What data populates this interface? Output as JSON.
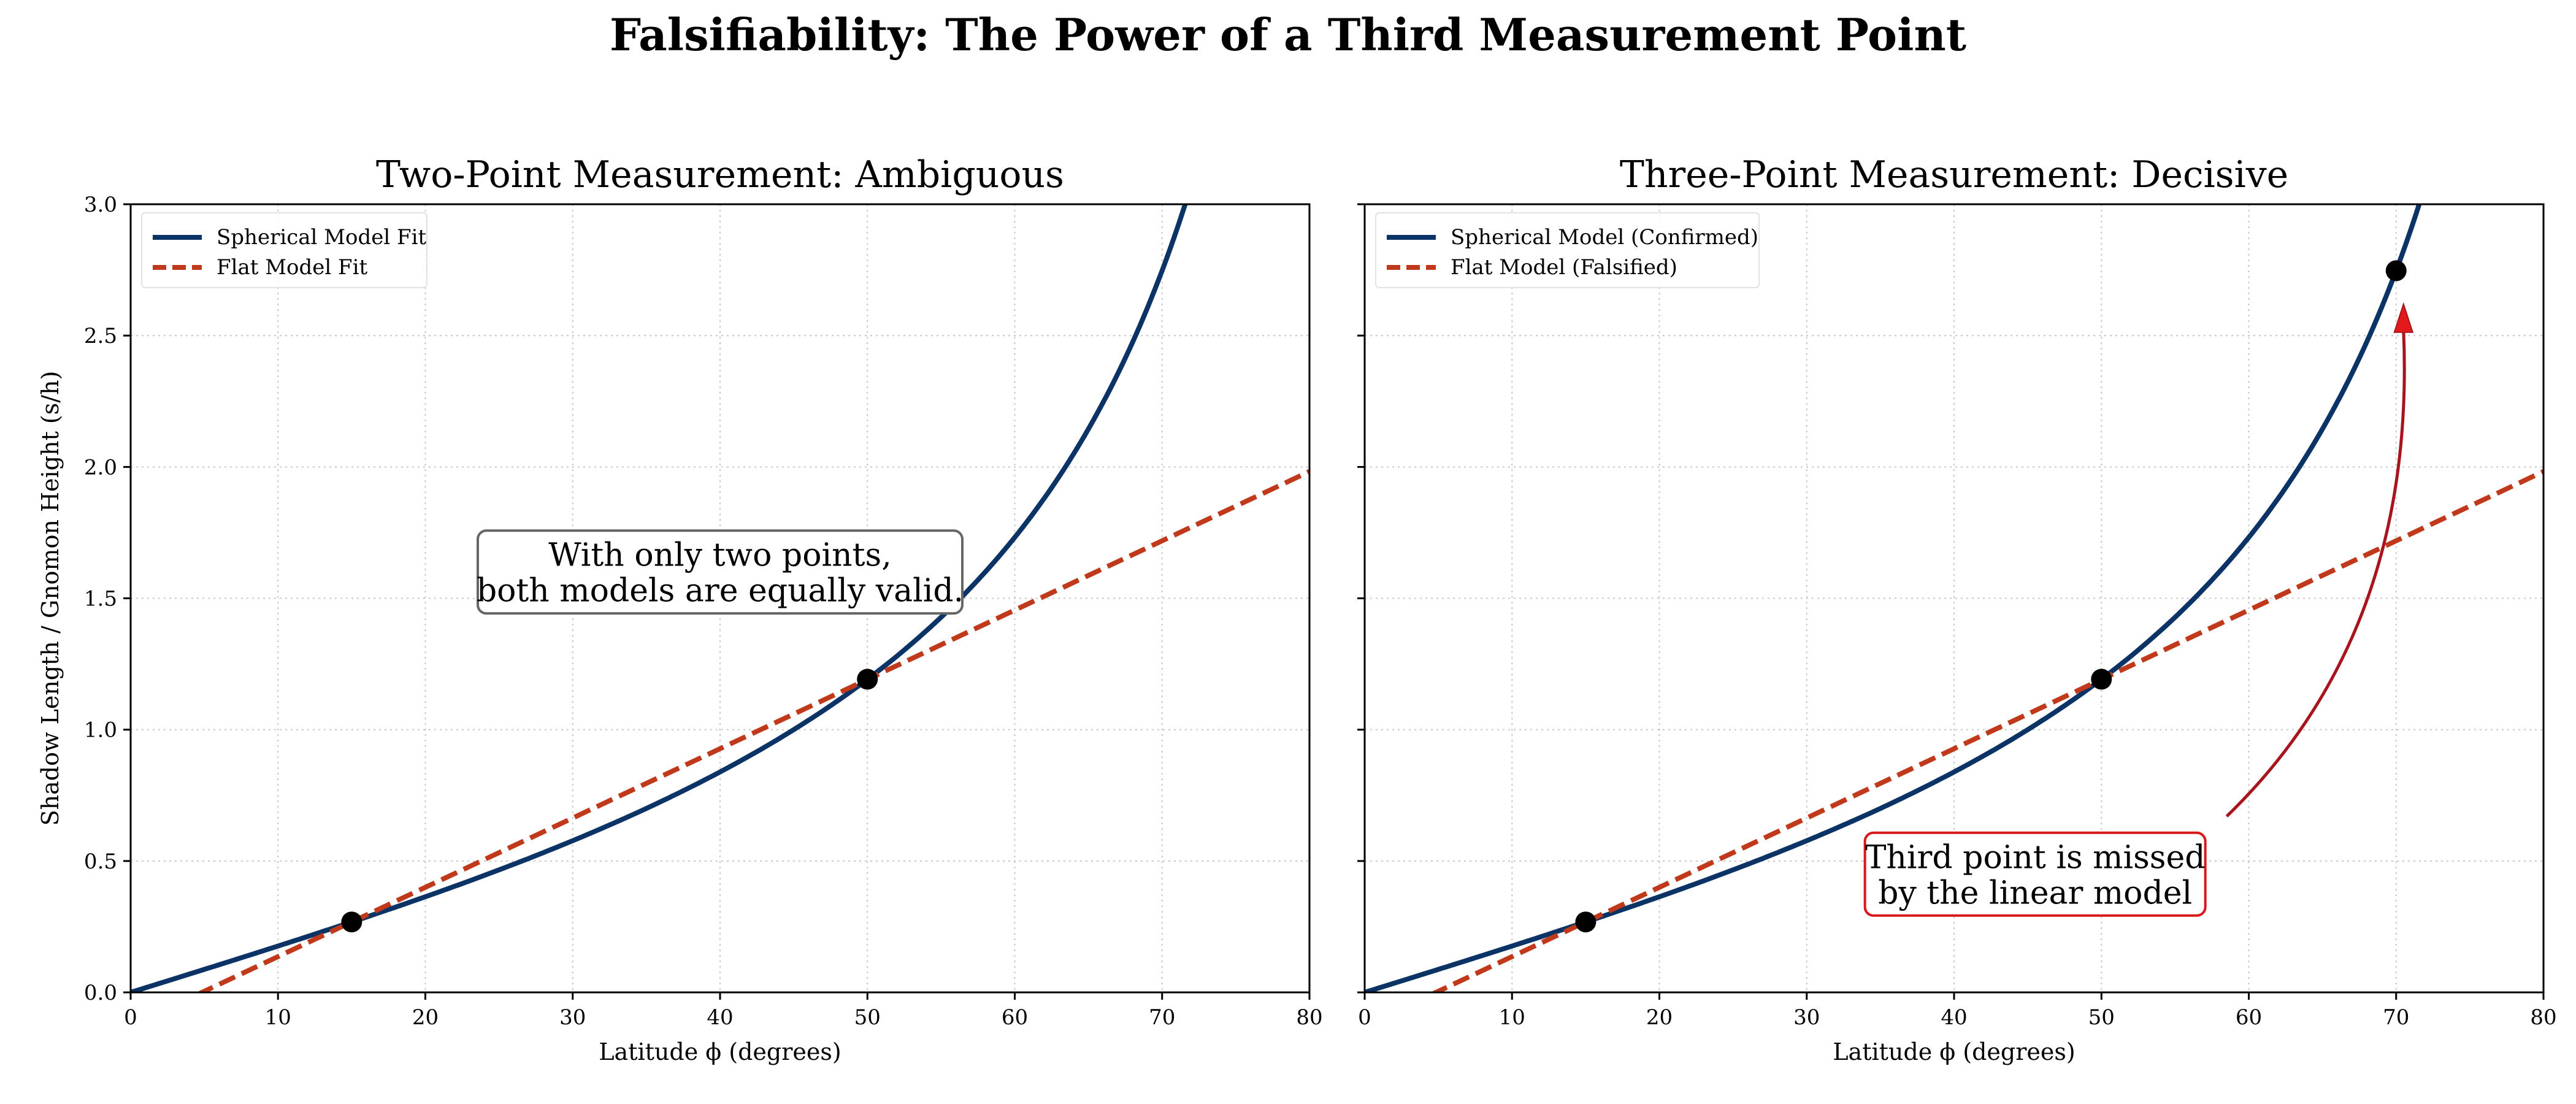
{
  "suptitle": "Falsifiability: The Power of a Third Measurement Point",
  "colors": {
    "spherical": "#0b3366",
    "flat": "#c0391b",
    "points": "#000000",
    "arrow": "#a8141c",
    "annot_box_left": "#666666",
    "annot_box_right": "#d7191c"
  },
  "chart_data": [
    {
      "type": "line",
      "title": "Two-Point Measurement: Ambiguous",
      "xlabel": "Latitude ϕ (degrees)",
      "ylabel": "Shadow Length / Gnomon Height (s/h)",
      "xlim": [
        0,
        80
      ],
      "ylim": [
        0,
        3.0
      ],
      "xticks": [
        "0",
        "10",
        "20",
        "30",
        "40",
        "50",
        "60",
        "70",
        "80"
      ],
      "yticks": [
        "0.0",
        "0.5",
        "1.0",
        "1.5",
        "2.0",
        "2.5",
        "3.0"
      ],
      "grid": true,
      "legend_position": "upper-left",
      "series": [
        {
          "name": "Spherical Model Fit",
          "model": "tan",
          "style": "solid"
        },
        {
          "name": "Flat Model Fit",
          "model": "linear",
          "slope": 0.02638,
          "intercept": -0.1277,
          "style": "dashed"
        }
      ],
      "points": [
        {
          "x": 15,
          "y": 0.268
        },
        {
          "x": 50,
          "y": 1.192
        }
      ],
      "annotation": {
        "lines": [
          "With only two points,",
          "both models are equally valid."
        ],
        "x": 40,
        "y": 1.6
      }
    },
    {
      "type": "line",
      "title": "Three-Point Measurement: Decisive",
      "xlabel": "Latitude ϕ (degrees)",
      "ylabel": "",
      "xlim": [
        0,
        80
      ],
      "ylim": [
        0,
        3.0
      ],
      "xticks": [
        "0",
        "10",
        "20",
        "30",
        "40",
        "50",
        "60",
        "70",
        "80"
      ],
      "yticks": [
        "",
        "",
        "",
        "",
        "",
        "",
        ""
      ],
      "grid": true,
      "legend_position": "upper-left",
      "series": [
        {
          "name": "Spherical Model (Confirmed)",
          "model": "tan",
          "style": "solid"
        },
        {
          "name": "Flat Model (Falsified)",
          "model": "linear",
          "slope": 0.02638,
          "intercept": -0.1277,
          "style": "dashed"
        }
      ],
      "points": [
        {
          "x": 15,
          "y": 0.268
        },
        {
          "x": 50,
          "y": 1.192
        },
        {
          "x": 70,
          "y": 2.747
        }
      ],
      "annotation": {
        "lines": [
          "Third point is missed",
          "by the linear model"
        ],
        "x": 45.5,
        "y": 0.45
      },
      "arrow": {
        "from": [
          58.5,
          0.67
        ],
        "to": [
          70.5,
          2.62
        ]
      }
    }
  ]
}
